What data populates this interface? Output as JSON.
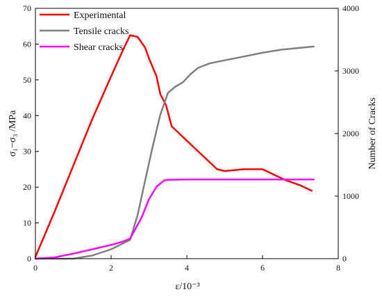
{
  "chart_data": {
    "type": "line",
    "title": "",
    "xlabel": "ε/10⁻³",
    "ylabel_left": "σ₁−σ₃ /MPa",
    "ylabel_right": "Number of Cracks",
    "xlim": [
      0,
      8
    ],
    "ylim_left": [
      0,
      70
    ],
    "ylim_right": [
      0,
      4000
    ],
    "x_ticks": [
      "0",
      "2",
      "4",
      "6",
      "8"
    ],
    "y_left_ticks": [
      "0",
      "10",
      "20",
      "30",
      "40",
      "50",
      "60",
      "70"
    ],
    "y_right_ticks": [
      "0",
      "1000",
      "2000",
      "3000",
      "4000"
    ],
    "grid": false,
    "legend_position": "top-left",
    "series": [
      {
        "name": "Experimental",
        "axis": "left",
        "color": "#ff0000",
        "x": [
          0,
          0.5,
          1.0,
          1.5,
          2.0,
          2.3,
          2.5,
          2.7,
          2.9,
          3.0,
          3.2,
          3.3,
          3.45,
          3.6,
          3.8,
          4.0,
          4.2,
          4.4,
          4.6,
          4.8,
          5.0,
          5.5,
          6.0,
          6.3,
          6.6,
          7.0,
          7.3
        ],
        "y": [
          0.5,
          13,
          26,
          39,
          51,
          58,
          62.5,
          62,
          59,
          56,
          51,
          46,
          43,
          37,
          35,
          33,
          31,
          29,
          27,
          25,
          24.5,
          25,
          25,
          23.5,
          22,
          20.5,
          19
        ]
      },
      {
        "name": "Tensile cracks",
        "axis": "right",
        "color": "#7f7f7f",
        "x": [
          0,
          1.0,
          1.5,
          2.0,
          2.5,
          2.7,
          2.9,
          3.1,
          3.3,
          3.5,
          3.7,
          3.9,
          4.1,
          4.3,
          4.6,
          5.0,
          5.5,
          6.0,
          6.5,
          7.0,
          7.35
        ],
        "y": [
          0,
          0,
          50,
          150,
          300,
          700,
          1250,
          1800,
          2300,
          2650,
          2750,
          2820,
          2950,
          3050,
          3120,
          3170,
          3230,
          3290,
          3340,
          3370,
          3390
        ]
      },
      {
        "name": "Shear cracks",
        "axis": "right",
        "color": "#ff00ff",
        "x": [
          0,
          0.5,
          1.0,
          1.5,
          2.0,
          2.3,
          2.5,
          2.8,
          3.0,
          3.2,
          3.4,
          3.5,
          4.0,
          5.0,
          6.0,
          7.0,
          7.35
        ],
        "y": [
          0,
          20,
          80,
          150,
          220,
          270,
          320,
          650,
          950,
          1150,
          1250,
          1260,
          1265,
          1265,
          1265,
          1265,
          1265
        ]
      }
    ]
  }
}
